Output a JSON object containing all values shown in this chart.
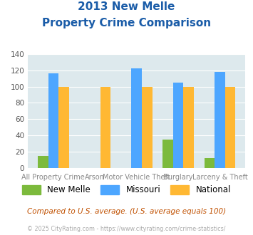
{
  "title_line1": "2013 New Melle",
  "title_line2": "Property Crime Comparison",
  "categories": [
    "All Property Crime",
    "Arson",
    "Motor Vehicle Theft",
    "Burglary",
    "Larceny & Theft"
  ],
  "cat_labels_top": [
    "",
    "Arson",
    "",
    "Burglary",
    ""
  ],
  "cat_labels_bot": [
    "All Property Crime",
    "",
    "Motor Vehicle Theft",
    "",
    "Larceny & Theft"
  ],
  "new_melle": [
    15,
    0,
    0,
    35,
    12
  ],
  "missouri": [
    116,
    0,
    122,
    105,
    118
  ],
  "national": [
    100,
    100,
    100,
    100,
    100
  ],
  "color_newmelle": "#7cba3c",
  "color_missouri": "#4da6ff",
  "color_national": "#ffb833",
  "ylim": [
    0,
    140
  ],
  "yticks": [
    0,
    20,
    40,
    60,
    80,
    100,
    120,
    140
  ],
  "bg_color": "#dde9ed",
  "legend_label_newmelle": "New Melle",
  "legend_label_missouri": "Missouri",
  "legend_label_national": "National",
  "footnote1": "Compared to U.S. average. (U.S. average equals 100)",
  "footnote2": "© 2025 CityRating.com - https://www.cityrating.com/crime-statistics/",
  "title_color": "#1a5ca8",
  "footnote1_color": "#c05000",
  "footnote2_color": "#aaaaaa",
  "xlabel_color": "#888888",
  "bar_width": 0.25
}
